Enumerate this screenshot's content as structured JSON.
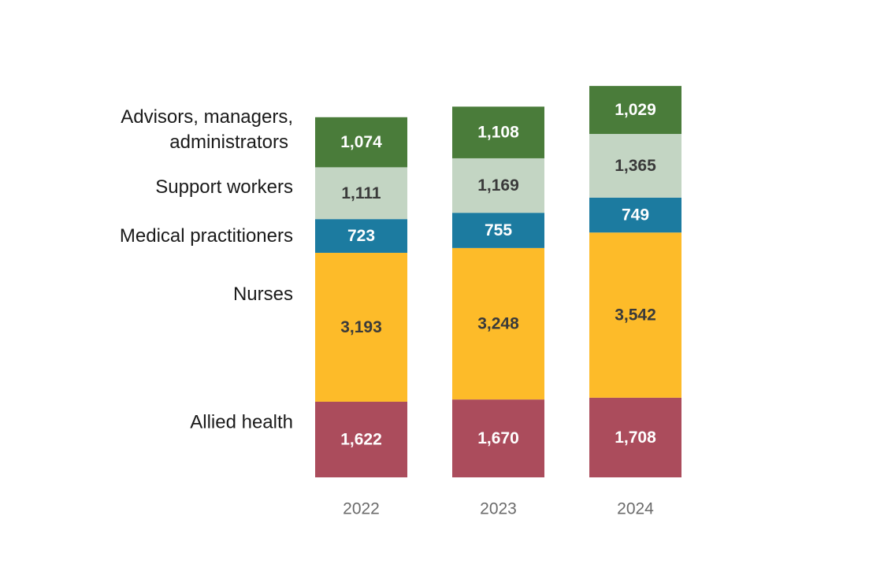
{
  "chart_data": {
    "type": "bar",
    "stacked": true,
    "orientation": "vertical",
    "title": "",
    "xlabel": "",
    "ylabel": "",
    "categories": [
      "2022",
      "2023",
      "2024"
    ],
    "series": [
      {
        "name": "Allied health",
        "values": [
          1622,
          1670,
          1708
        ],
        "color": "#ab4c5c",
        "label_color": "#ffffff",
        "label_lines": [
          "Allied health"
        ]
      },
      {
        "name": "Nurses",
        "values": [
          3193,
          3248,
          3542
        ],
        "color": "#fdbb29",
        "label_color": "#3a3a3a",
        "label_lines": [
          "Nurses"
        ]
      },
      {
        "name": "Medical practitioners",
        "values": [
          723,
          755,
          749
        ],
        "color": "#1c7ba0",
        "label_color": "#ffffff",
        "label_lines": [
          "Medical practitioners"
        ]
      },
      {
        "name": "Support workers",
        "values": [
          1111,
          1169,
          1365
        ],
        "color": "#c3d5c3",
        "label_color": "#3a3a3a",
        "label_lines": [
          "Support workers"
        ]
      },
      {
        "name": "Advisors, managers, administrators",
        "values": [
          1074,
          1108,
          1029
        ],
        "color": "#4a7c3a",
        "label_color": "#ffffff",
        "label_lines": [
          "Advisors, managers,",
          "administrators"
        ]
      }
    ],
    "data_labels": [
      [
        "1,622",
        "1,670",
        "1,708"
      ],
      [
        "3,193",
        "3,248",
        "3,542"
      ],
      [
        "723",
        "755",
        "749"
      ],
      [
        "1,111",
        "1,169",
        "1,365"
      ],
      [
        "1,074",
        "1,108",
        "1,029"
      ]
    ],
    "legend": "left, labels beside 2022 segments",
    "grid": false
  }
}
